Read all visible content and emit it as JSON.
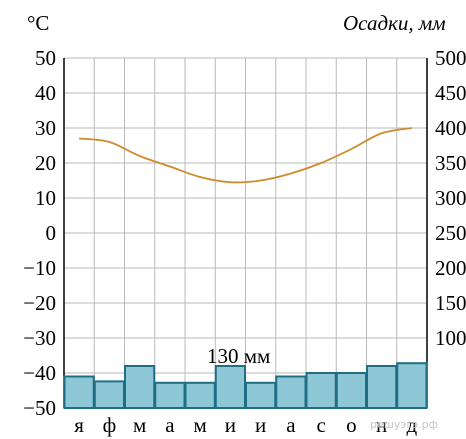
{
  "chart_data": {
    "type": "bar+line",
    "title": "",
    "left_unit_label": "°C",
    "right_unit_label": "Осадки, мм",
    "months": [
      "я",
      "ф",
      "м",
      "а",
      "м",
      "и",
      "и",
      "а",
      "с",
      "о",
      "н",
      "д"
    ],
    "temperature": {
      "ylim": [
        -50,
        50
      ],
      "ticks": [
        50,
        40,
        30,
        20,
        10,
        0,
        -10,
        -20,
        -30,
        -40,
        -50
      ],
      "tick_labels": [
        "50",
        "40",
        "30",
        "20",
        "10",
        "0",
        "−10",
        "−20",
        "−30",
        "−40",
        "−50"
      ],
      "values": [
        27,
        26,
        22,
        19,
        16,
        14.5,
        15,
        17,
        20,
        24,
        28.5,
        30
      ],
      "color": "#d08a2e"
    },
    "precipitation": {
      "ylim": [
        0,
        500
      ],
      "ticks": [
        500,
        450,
        400,
        350,
        300,
        250,
        200,
        150,
        100
      ],
      "tick_labels": [
        "500",
        "450",
        "400",
        "350",
        "300",
        "250",
        "200",
        "150",
        "100"
      ],
      "values": [
        45,
        38,
        60,
        36,
        36,
        60,
        36,
        45,
        50,
        50,
        60,
        64
      ],
      "color": "#8ec8d6",
      "edge_color": "#1f6e86"
    },
    "annotation": "130 мм",
    "grid": true
  },
  "watermark": "решуэгэ.рф"
}
